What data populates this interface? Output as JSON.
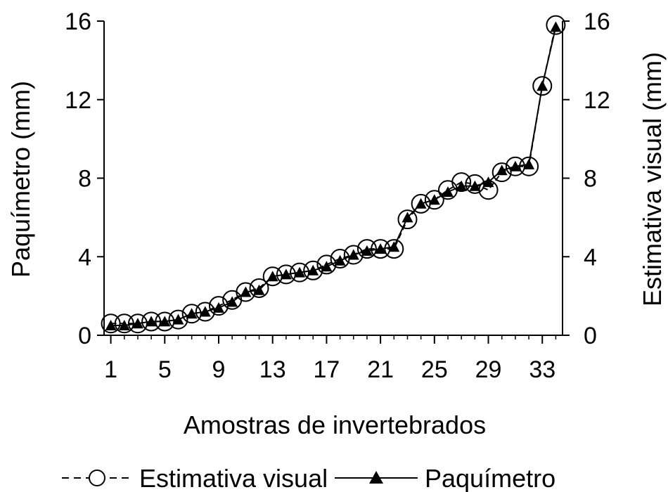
{
  "chart_data": {
    "type": "line",
    "xlabel": "Amostras de invertebrados",
    "ylabel": "Paquímetro (mm)",
    "y2label": "Estimativa visual (mm)",
    "x_tick_labels": [
      "1",
      "5",
      "9",
      "13",
      "17",
      "21",
      "25",
      "29",
      "33"
    ],
    "y_ticks": [
      0,
      4,
      8,
      12,
      16
    ],
    "y2_ticks": [
      0,
      4,
      8,
      12,
      16
    ],
    "xlim": [
      0.5,
      34.5
    ],
    "ylim": [
      0,
      16
    ],
    "y2lim": [
      0,
      16
    ],
    "grid": false,
    "legend_position": "bottom",
    "x": [
      1,
      2,
      3,
      4,
      5,
      6,
      7,
      8,
      9,
      10,
      11,
      12,
      13,
      14,
      15,
      16,
      17,
      18,
      19,
      20,
      21,
      22,
      23,
      24,
      25,
      26,
      27,
      28,
      29,
      30,
      31,
      32,
      33,
      34
    ],
    "series": [
      {
        "name": "Estimativa visual",
        "axis": "right",
        "marker": "open-circle",
        "line": "dashed",
        "color": "#000000",
        "values": [
          0.6,
          0.6,
          0.6,
          0.7,
          0.7,
          0.8,
          1.1,
          1.2,
          1.5,
          1.8,
          2.2,
          2.4,
          3.0,
          3.1,
          3.2,
          3.3,
          3.6,
          3.9,
          4.1,
          4.4,
          4.4,
          4.4,
          5.9,
          6.7,
          6.9,
          7.4,
          7.8,
          7.7,
          7.4,
          8.3,
          8.6,
          8.6,
          12.7,
          15.8
        ]
      },
      {
        "name": "Paquímetro",
        "axis": "left",
        "marker": "filled-triangle",
        "line": "solid",
        "color": "#000000",
        "values": [
          0.5,
          0.5,
          0.6,
          0.7,
          0.7,
          0.8,
          1.1,
          1.2,
          1.4,
          1.7,
          2.2,
          2.3,
          3.0,
          3.1,
          3.2,
          3.3,
          3.5,
          3.8,
          4.1,
          4.3,
          4.4,
          4.5,
          6.0,
          6.7,
          6.9,
          7.3,
          7.6,
          7.6,
          7.8,
          8.4,
          8.6,
          8.7,
          12.7,
          15.7
        ]
      }
    ]
  }
}
